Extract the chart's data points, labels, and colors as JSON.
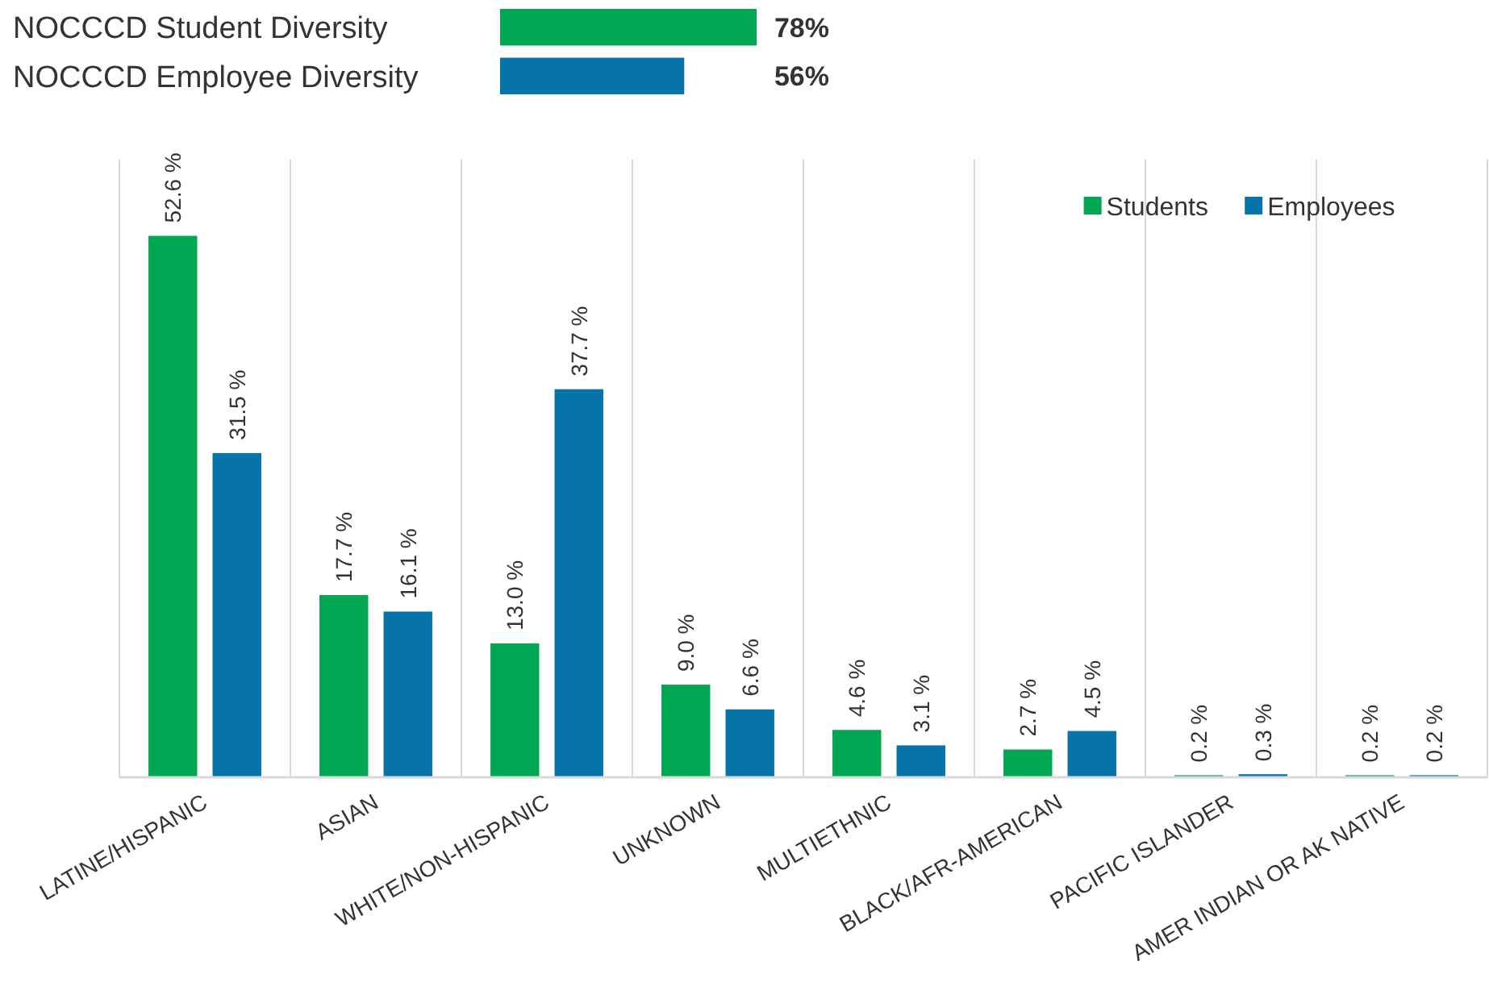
{
  "chart_data": [
    {
      "type": "bar",
      "orientation": "horizontal",
      "categories": [
        "NOCCCD Student Diversity",
        "NOCCCD Employee Diversity"
      ],
      "values": [
        78,
        56
      ],
      "colors": [
        "#00a651",
        "#0674a9"
      ],
      "value_labels": [
        "78%",
        "56%"
      ],
      "tick_labels": false
    },
    {
      "type": "bar",
      "categories": [
        "LATINE/HISPANIC",
        "ASIAN",
        "WHITE/NON-HISPANIC",
        "UNKNOWN",
        "MULTIETHNIC",
        "BLACK/AFR-AMERICAN",
        "PACIFIC ISLANDER",
        "AMER INDIAN OR AK NATIVE"
      ],
      "series": [
        {
          "name": "Students",
          "color": "#00a651",
          "values": [
            52.6,
            17.7,
            13.0,
            9.0,
            4.6,
            2.7,
            0.2,
            0.2
          ],
          "value_labels": [
            "52.6 %",
            "17.7 %",
            "13.0 %",
            "9.0 %",
            "4.6 %",
            "2.7 %",
            "0.2 %",
            "0.2 %"
          ]
        },
        {
          "name": "Employees",
          "color": "#0674a9",
          "values": [
            31.5,
            16.1,
            37.7,
            6.6,
            3.1,
            4.5,
            0.3,
            0.2
          ],
          "value_labels": [
            "31.5 %",
            "16.1 %",
            "37.7 %",
            "6.6 %",
            "3.1 %",
            "4.5 %",
            "0.3 %",
            "0.2 %"
          ]
        }
      ],
      "ylim": [
        0,
        60
      ],
      "tick_labels": "x",
      "grid": "x",
      "legend": "top right"
    }
  ]
}
